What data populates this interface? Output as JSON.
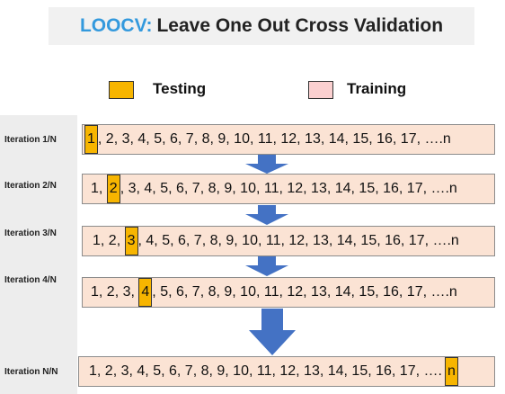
{
  "title": {
    "accent": "LOOCV:",
    "rest": "Leave One Out Cross Validation"
  },
  "legend": [
    {
      "label": "Testing",
      "color": "#f7b500"
    },
    {
      "label": "Training",
      "color": "#fbd0d0"
    }
  ],
  "colors": {
    "training_row": "#fbe3d4",
    "testing_cell": "#f7b500",
    "arrow": "#4472c4"
  },
  "rows": [
    {
      "label": "Iteration 1/N",
      "sequence": "1, 2, 3, 4, 5, 6, 7, 8, 9, 10, 11, 12, 13, 14, 15, 16, 17, ….n",
      "test_index": 0
    },
    {
      "label": "Iteration 2/N",
      "sequence": "1, 2, 3, 4, 5, 6, 7, 8, 9, 10, 11, 12, 13, 14, 15, 16, 17, ….n",
      "test_index": 1
    },
    {
      "label": "Iteration 3/N",
      "sequence": "1, 2, 3, 4, 5, 6, 7, 8, 9, 10, 11, 12, 13, 14, 15, 16, 17, ….n",
      "test_index": 2
    },
    {
      "label": "Iteration 4/N",
      "sequence": "1, 2, 3, 4, 5, 6, 7, 8, 9, 10, 11, 12, 13, 14, 15, 16, 17, ….n",
      "test_index": 3
    },
    {
      "label": "Iteration N/N",
      "sequence": "1, 2, 3, 4, 5, 6, 7, 8, 9, 10, 11, 12, 13, 14, 15, 16, 17, ….n",
      "test_index": 17
    }
  ]
}
